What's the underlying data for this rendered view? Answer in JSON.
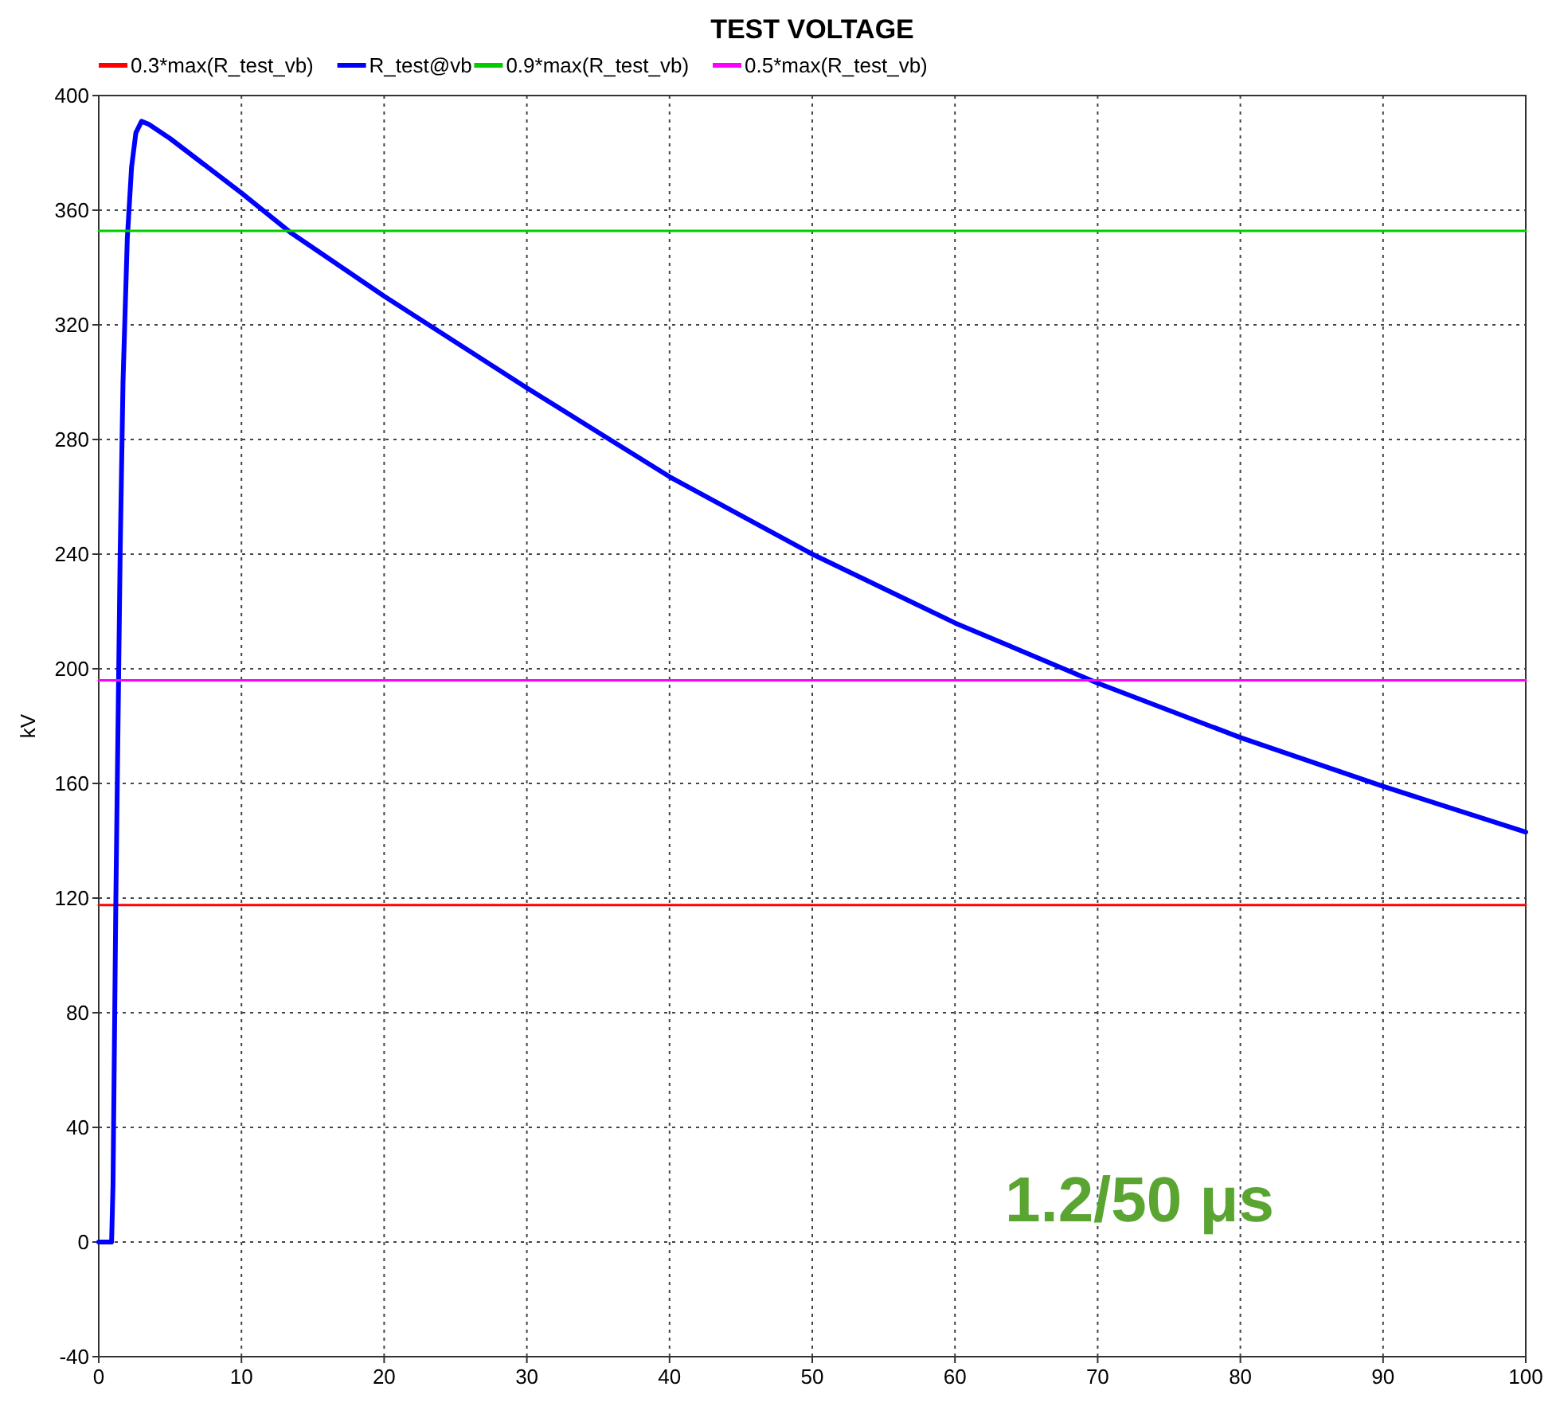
{
  "chart_data": {
    "type": "line",
    "title": "TEST VOLTAGE",
    "ylabel": "kV",
    "xlim": [
      0,
      100
    ],
    "ylim": [
      -40,
      400
    ],
    "xticks": [
      0,
      10,
      20,
      30,
      40,
      50,
      60,
      70,
      80,
      90,
      100
    ],
    "yticks": [
      -40,
      0,
      40,
      80,
      120,
      160,
      200,
      240,
      280,
      320,
      360,
      400
    ],
    "grid": true,
    "legend": "top",
    "annotations": [
      "1.2/50 μs"
    ],
    "series": [
      {
        "name": "0.3*max(R_test_vb)",
        "color": "#ff0000",
        "x": [
          0,
          100
        ],
        "values": [
          117.6,
          117.6
        ]
      },
      {
        "name": "R_test@vb",
        "color": "#0000ff",
        "x": [
          0,
          0.9,
          1.0,
          1.1,
          1.2,
          1.3,
          1.4,
          1.5,
          1.7,
          2.0,
          2.3,
          2.6,
          3.0,
          3.5,
          5,
          10,
          13.5,
          20,
          30,
          40,
          50,
          60,
          70,
          80,
          90,
          100
        ],
        "values": [
          0,
          0,
          20,
          70,
          120,
          160,
          200,
          240,
          300,
          350,
          375,
          387,
          391,
          390,
          385,
          366,
          352,
          330,
          298,
          267,
          240,
          216,
          195,
          176,
          159,
          143
        ]
      },
      {
        "name": "0.9*max(R_test_vb)",
        "color": "#00cc00",
        "x": [
          0,
          100
        ],
        "values": [
          352.8,
          352.8
        ]
      },
      {
        "name": "0.5*max(R_test_vb)",
        "color": "#ff00ff",
        "x": [
          0,
          100
        ],
        "values": [
          196,
          196
        ]
      }
    ]
  }
}
